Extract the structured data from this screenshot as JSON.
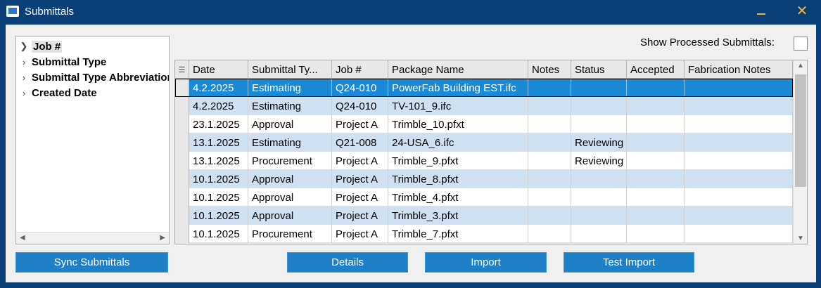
{
  "window": {
    "title": "Submittals"
  },
  "tree": {
    "items": [
      {
        "label": "Job #"
      },
      {
        "label": "Submittal Type"
      },
      {
        "label": "Submittal Type Abbreviation"
      },
      {
        "label": "Created Date"
      }
    ]
  },
  "options": {
    "show_processed_label": "Show Processed Submittals:",
    "show_processed_checked": false
  },
  "grid": {
    "columns": [
      "Date",
      "Submittal Ty...",
      "Job #",
      "Package Name",
      "Notes",
      "Status",
      "Accepted",
      "Fabrication Notes"
    ],
    "rows": [
      {
        "date": "4.2.2025",
        "type": "Estimating",
        "job": "Q24-010",
        "package": "PowerFab Building EST.ifc",
        "notes": "",
        "status": "",
        "accepted": "",
        "fab_notes": ""
      },
      {
        "date": "4.2.2025",
        "type": "Estimating",
        "job": "Q24-010",
        "package": "TV-101_9.ifc",
        "notes": "",
        "status": "",
        "accepted": "",
        "fab_notes": ""
      },
      {
        "date": "23.1.2025",
        "type": "Approval",
        "job": "Project A",
        "package": "Trimble_10.pfxt",
        "notes": "",
        "status": "",
        "accepted": "",
        "fab_notes": ""
      },
      {
        "date": "13.1.2025",
        "type": "Estimating",
        "job": "Q21-008",
        "package": "24-USA_6.ifc",
        "notes": "",
        "status": "Reviewing",
        "accepted": "",
        "fab_notes": ""
      },
      {
        "date": "13.1.2025",
        "type": "Procurement",
        "job": "Project A",
        "package": "Trimble_9.pfxt",
        "notes": "",
        "status": "Reviewing",
        "accepted": "",
        "fab_notes": ""
      },
      {
        "date": "10.1.2025",
        "type": "Approval",
        "job": "Project A",
        "package": "Trimble_8.pfxt",
        "notes": "",
        "status": "",
        "accepted": "",
        "fab_notes": ""
      },
      {
        "date": "10.1.2025",
        "type": "Approval",
        "job": "Project A",
        "package": "Trimble_4.pfxt",
        "notes": "",
        "status": "",
        "accepted": "",
        "fab_notes": ""
      },
      {
        "date": "10.1.2025",
        "type": "Approval",
        "job": "Project A",
        "package": "Trimble_3.pfxt",
        "notes": "",
        "status": "",
        "accepted": "",
        "fab_notes": ""
      },
      {
        "date": "10.1.2025",
        "type": "Procurement",
        "job": "Project A",
        "package": "Trimble_7.pfxt",
        "notes": "",
        "status": "",
        "accepted": "",
        "fab_notes": ""
      }
    ]
  },
  "buttons": {
    "sync": "Sync Submittals",
    "details": "Details",
    "import": "Import",
    "test_import": "Test Import"
  },
  "colors": {
    "window_frame": "#0b3f78",
    "accent_button": "#1f80c8",
    "selected_row": "#1a8ad6",
    "alt_row": "#cfe1f0",
    "title_controls": "#f0b53a"
  }
}
